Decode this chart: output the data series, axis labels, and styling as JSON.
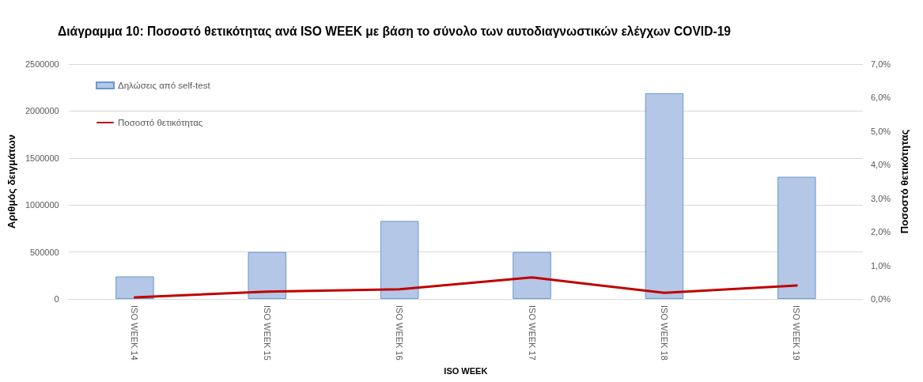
{
  "chart_data": {
    "type": "bar",
    "title": "Διάγραμμα 10: Ποσοστό θετικότητας ανά ISO WEEK με βάση το σύνολο των αυτοδιαγνωστικών ελέγχων COVID-19",
    "xlabel": "ISO WEEK",
    "ylabel": "Αριθμός δειγμάτων",
    "y2label": "Ποσοστό θετικότητας",
    "categories": [
      "ISO WEEK 14",
      "ISO WEEK 15",
      "ISO WEEK 16",
      "ISO WEEK 17",
      "ISO WEEK 18",
      "ISO WEEK 19"
    ],
    "series": [
      {
        "name": "Δηλώσεις από self-test",
        "color": "#b4c7e7",
        "values": [
          240000,
          500000,
          830000,
          500000,
          2190000,
          1300000
        ]
      },
      {
        "name": "Ποσοστό θετικότητας",
        "type": "line",
        "axis": "y2",
        "color": "#c00000",
        "values": [
          0.05,
          0.22,
          0.29,
          0.64,
          0.18,
          0.4
        ]
      }
    ],
    "ylim": [
      0,
      2500000
    ],
    "yticks": [
      0,
      500000,
      1000000,
      1500000,
      2000000,
      2500000
    ],
    "y2lim": [
      0,
      7
    ],
    "y2ticks": [
      {
        "value": 0,
        "label": "0,0%"
      },
      {
        "value": 1,
        "label": "1,0%"
      },
      {
        "value": 2,
        "label": "2,0%"
      },
      {
        "value": 3,
        "label": "3,0%"
      },
      {
        "value": 4,
        "label": "4,0%"
      },
      {
        "value": 5,
        "label": "5,0%"
      },
      {
        "value": 6,
        "label": "6,0%"
      },
      {
        "value": 7,
        "label": "7,0%"
      }
    ],
    "grid": "y",
    "legend": "top left",
    "marker": "none",
    "line_style": "solid"
  }
}
